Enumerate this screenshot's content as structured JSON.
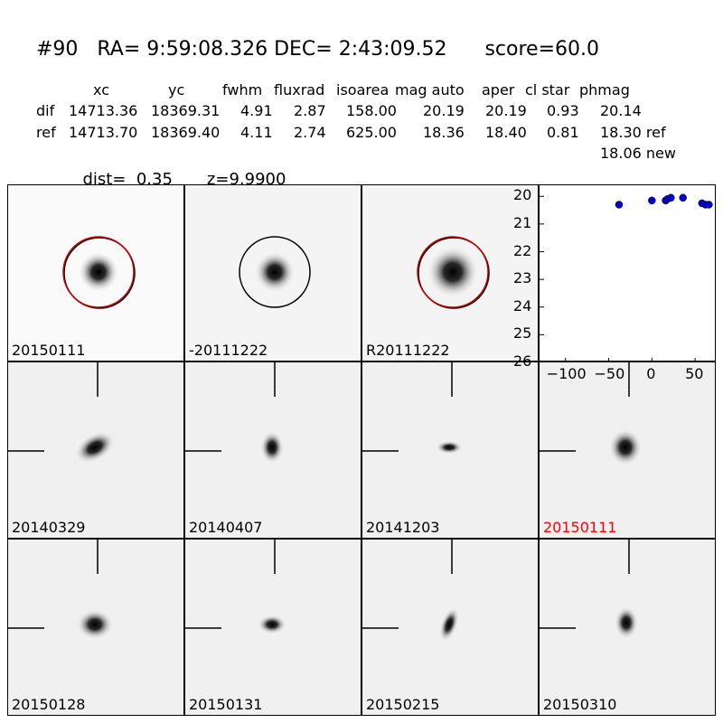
{
  "header": {
    "title": "#90   RA= 9:59:08.326 DEC= 2:43:09.52      score=60.0",
    "columns": [
      "xc",
      "yc",
      "fwhm",
      "fluxrad",
      "isoarea",
      "mag auto",
      "aper",
      "cl star",
      "phmag"
    ],
    "rows": [
      {
        "name": "dif",
        "values": [
          "14713.36",
          "18369.31",
          "4.91",
          "2.87",
          "158.00",
          "20.19",
          "20.19",
          "0.93",
          "20.14"
        ]
      },
      {
        "name": "ref",
        "values": [
          "14713.70",
          "18369.40",
          "4.11",
          "2.74",
          "625.00",
          "18.36",
          "18.40",
          "0.81",
          "18.30 ref"
        ]
      }
    ],
    "new_mag": "18.06 new",
    "dist": "dist=  0.35",
    "z": "z=9.9900"
  },
  "stamps_top": [
    {
      "label": "20150111",
      "circle": "red"
    },
    {
      "label": "-20111222",
      "circle": "black"
    },
    {
      "label": "R20111222",
      "circle": "red"
    }
  ],
  "stamps_grid": [
    {
      "label": "20140329",
      "color": "#000000"
    },
    {
      "label": "20140407",
      "color": "#000000"
    },
    {
      "label": "20141203",
      "color": "#000000"
    },
    {
      "label": "20150111",
      "color": "#ff0000"
    },
    {
      "label": "20150128",
      "color": "#000000"
    },
    {
      "label": "20150131",
      "color": "#000000"
    },
    {
      "label": "20150215",
      "color": "#000000"
    },
    {
      "label": "20150310",
      "color": "#000000"
    }
  ],
  "chart_data": {
    "type": "scatter",
    "x": [
      -38,
      0,
      16,
      18,
      22,
      36,
      58,
      62,
      66
    ],
    "y": [
      20.3,
      20.15,
      20.15,
      20.1,
      20.05,
      20.05,
      20.25,
      20.3,
      20.3
    ],
    "xlim": [
      -130,
      75
    ],
    "ylim": [
      26,
      19.6
    ],
    "yticks": [
      "20",
      "21",
      "22",
      "23",
      "24",
      "25",
      "26"
    ],
    "xticks": [
      "−100",
      "−50",
      "0",
      "50"
    ],
    "point_color": "#0000cc"
  }
}
